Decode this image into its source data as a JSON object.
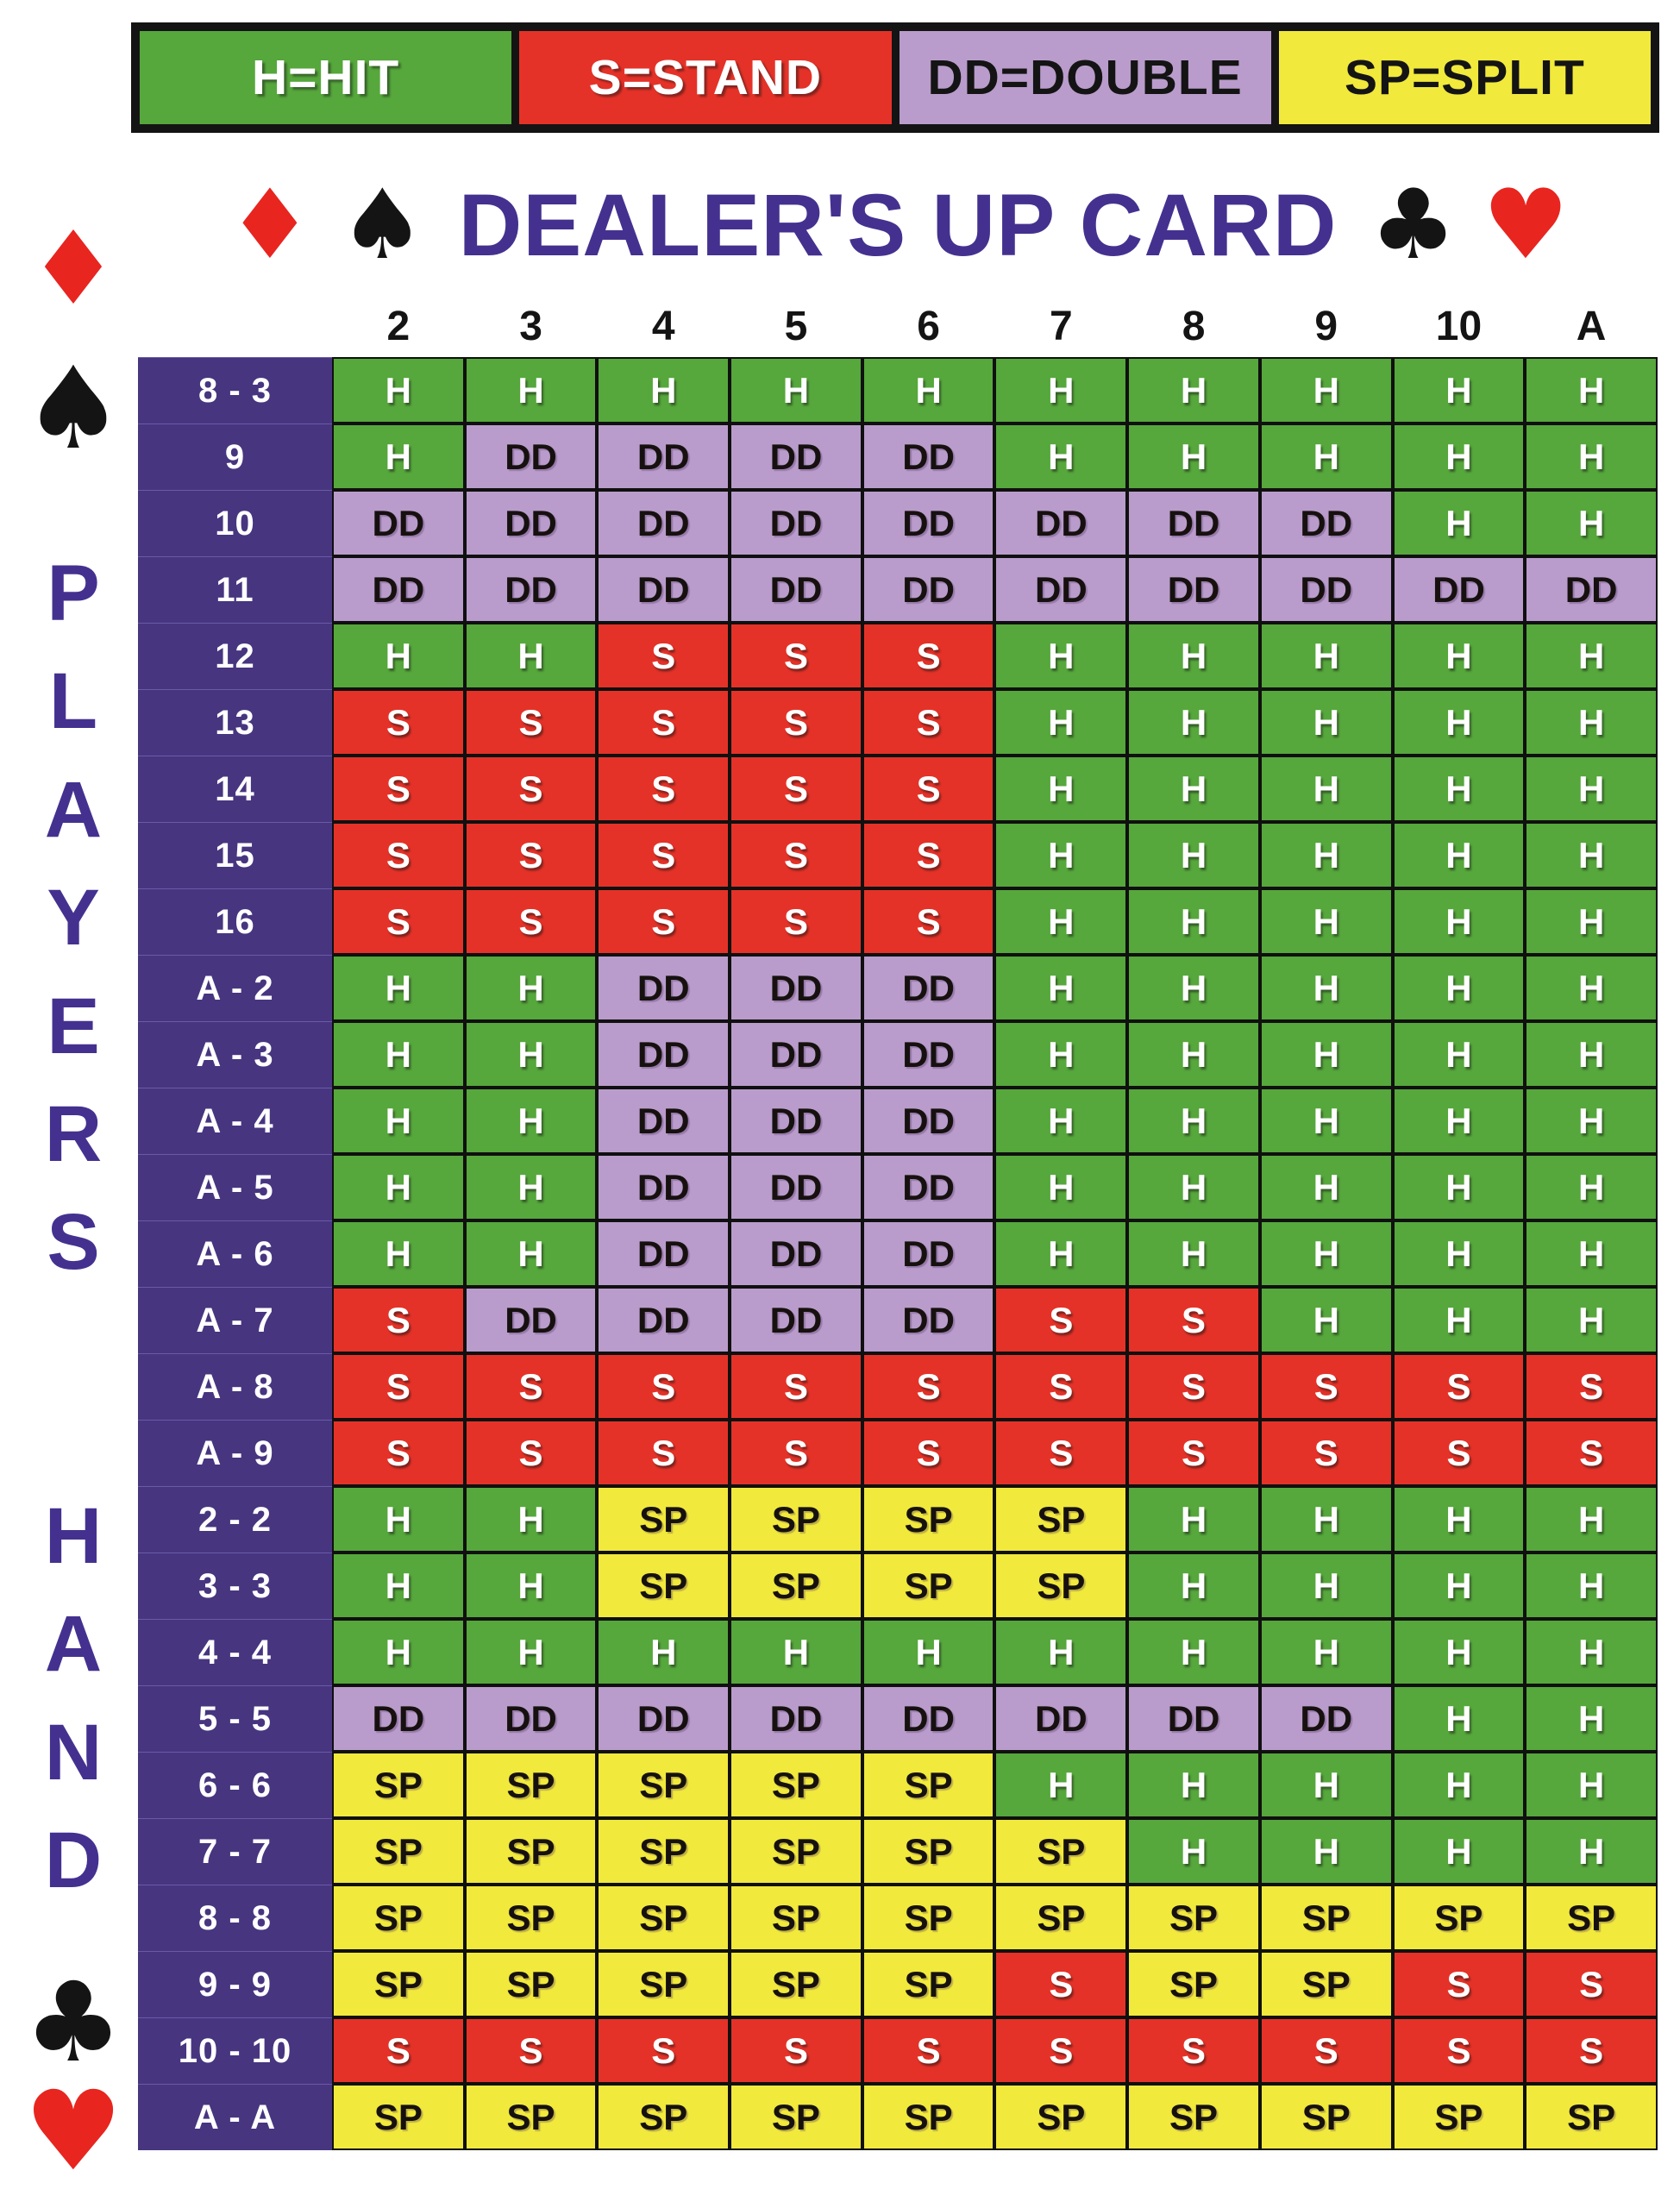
{
  "legend": {
    "items": [
      {
        "label": "H=HIT",
        "color": "#56a73c",
        "text_color": "#ffffff"
      },
      {
        "label": "S=STAND",
        "color": "#e53228",
        "text_color": "#ffffff"
      },
      {
        "label": "DD=DOUBLE",
        "color": "#b99ccb",
        "text_color": "#141414"
      },
      {
        "label": "SP=SPLIT",
        "color": "#f1e93c",
        "text_color": "#141414"
      }
    ]
  },
  "title": {
    "text": "DEALER'S UP CARD",
    "left_suits": [
      "diamond",
      "spade"
    ],
    "right_suits": [
      "club",
      "heart"
    ]
  },
  "side": {
    "top_suits": [
      "diamond",
      "spade"
    ],
    "word1": "PLAYERS",
    "word2": "HAND",
    "bottom_suits": [
      "club",
      "heart"
    ]
  },
  "chart_data": {
    "type": "table",
    "title": "DEALER'S UP CARD",
    "row_axis_label": "PLAYERS HAND",
    "columns": [
      "2",
      "3",
      "4",
      "5",
      "6",
      "7",
      "8",
      "9",
      "10",
      "A"
    ],
    "rows": [
      {
        "label": "8 - 3",
        "values": [
          "H",
          "H",
          "H",
          "H",
          "H",
          "H",
          "H",
          "H",
          "H",
          "H"
        ]
      },
      {
        "label": "9",
        "values": [
          "H",
          "DD",
          "DD",
          "DD",
          "DD",
          "H",
          "H",
          "H",
          "H",
          "H"
        ]
      },
      {
        "label": "10",
        "values": [
          "DD",
          "DD",
          "DD",
          "DD",
          "DD",
          "DD",
          "DD",
          "DD",
          "H",
          "H"
        ]
      },
      {
        "label": "11",
        "values": [
          "DD",
          "DD",
          "DD",
          "DD",
          "DD",
          "DD",
          "DD",
          "DD",
          "DD",
          "DD"
        ]
      },
      {
        "label": "12",
        "values": [
          "H",
          "H",
          "S",
          "S",
          "S",
          "H",
          "H",
          "H",
          "H",
          "H"
        ]
      },
      {
        "label": "13",
        "values": [
          "S",
          "S",
          "S",
          "S",
          "S",
          "H",
          "H",
          "H",
          "H",
          "H"
        ]
      },
      {
        "label": "14",
        "values": [
          "S",
          "S",
          "S",
          "S",
          "S",
          "H",
          "H",
          "H",
          "H",
          "H"
        ]
      },
      {
        "label": "15",
        "values": [
          "S",
          "S",
          "S",
          "S",
          "S",
          "H",
          "H",
          "H",
          "H",
          "H"
        ]
      },
      {
        "label": "16",
        "values": [
          "S",
          "S",
          "S",
          "S",
          "S",
          "H",
          "H",
          "H",
          "H",
          "H"
        ]
      },
      {
        "label": "A - 2",
        "values": [
          "H",
          "H",
          "DD",
          "DD",
          "DD",
          "H",
          "H",
          "H",
          "H",
          "H"
        ]
      },
      {
        "label": "A - 3",
        "values": [
          "H",
          "H",
          "DD",
          "DD",
          "DD",
          "H",
          "H",
          "H",
          "H",
          "H"
        ]
      },
      {
        "label": "A - 4",
        "values": [
          "H",
          "H",
          "DD",
          "DD",
          "DD",
          "H",
          "H",
          "H",
          "H",
          "H"
        ]
      },
      {
        "label": "A - 5",
        "values": [
          "H",
          "H",
          "DD",
          "DD",
          "DD",
          "H",
          "H",
          "H",
          "H",
          "H"
        ]
      },
      {
        "label": "A - 6",
        "values": [
          "H",
          "H",
          "DD",
          "DD",
          "DD",
          "H",
          "H",
          "H",
          "H",
          "H"
        ]
      },
      {
        "label": "A - 7",
        "values": [
          "S",
          "DD",
          "DD",
          "DD",
          "DD",
          "S",
          "S",
          "H",
          "H",
          "H"
        ]
      },
      {
        "label": "A - 8",
        "values": [
          "S",
          "S",
          "S",
          "S",
          "S",
          "S",
          "S",
          "S",
          "S",
          "S"
        ]
      },
      {
        "label": "A - 9",
        "values": [
          "S",
          "S",
          "S",
          "S",
          "S",
          "S",
          "S",
          "S",
          "S",
          "S"
        ]
      },
      {
        "label": "2 - 2",
        "values": [
          "H",
          "H",
          "SP",
          "SP",
          "SP",
          "SP",
          "H",
          "H",
          "H",
          "H"
        ]
      },
      {
        "label": "3 - 3",
        "values": [
          "H",
          "H",
          "SP",
          "SP",
          "SP",
          "SP",
          "H",
          "H",
          "H",
          "H"
        ]
      },
      {
        "label": "4 - 4",
        "values": [
          "H",
          "H",
          "H",
          "H",
          "H",
          "H",
          "H",
          "H",
          "H",
          "H"
        ]
      },
      {
        "label": "5 - 5",
        "values": [
          "DD",
          "DD",
          "DD",
          "DD",
          "DD",
          "DD",
          "DD",
          "DD",
          "H",
          "H"
        ]
      },
      {
        "label": "6 - 6",
        "values": [
          "SP",
          "SP",
          "SP",
          "SP",
          "SP",
          "H",
          "H",
          "H",
          "H",
          "H"
        ]
      },
      {
        "label": "7 - 7",
        "values": [
          "SP",
          "SP",
          "SP",
          "SP",
          "SP",
          "SP",
          "H",
          "H",
          "H",
          "H"
        ]
      },
      {
        "label": "8 - 8",
        "values": [
          "SP",
          "SP",
          "SP",
          "SP",
          "SP",
          "SP",
          "SP",
          "SP",
          "SP",
          "SP"
        ]
      },
      {
        "label": "9 - 9",
        "values": [
          "SP",
          "SP",
          "SP",
          "SP",
          "SP",
          "S",
          "SP",
          "SP",
          "S",
          "S"
        ]
      },
      {
        "label": "10 - 10",
        "values": [
          "S",
          "S",
          "S",
          "S",
          "S",
          "S",
          "S",
          "S",
          "S",
          "S"
        ]
      },
      {
        "label": "A - A",
        "values": [
          "SP",
          "SP",
          "SP",
          "SP",
          "SP",
          "SP",
          "SP",
          "SP",
          "SP",
          "SP"
        ]
      }
    ],
    "legend_map": {
      "H": "HIT",
      "S": "STAND",
      "DD": "DOUBLE",
      "SP": "SPLIT"
    },
    "action_colors": {
      "H": "#56a73c",
      "S": "#e53228",
      "DD": "#b99ccb",
      "SP": "#f1e93c"
    },
    "action_text_colors": {
      "H": "#ffffff",
      "S": "#ffffff",
      "DD": "#16110f",
      "SP": "#16110f"
    }
  },
  "colors": {
    "page_bg": "#ffffff",
    "legend_frame": "#141414",
    "title_purple": "#44318f",
    "side_letter_purple": "#44318f",
    "suit_red": "#e8251f",
    "suit_black": "#141414",
    "row_label_bg": "#473580",
    "row_label_text": "#ffffff",
    "column_header_text": "#141414",
    "grid_border": "#101010"
  }
}
